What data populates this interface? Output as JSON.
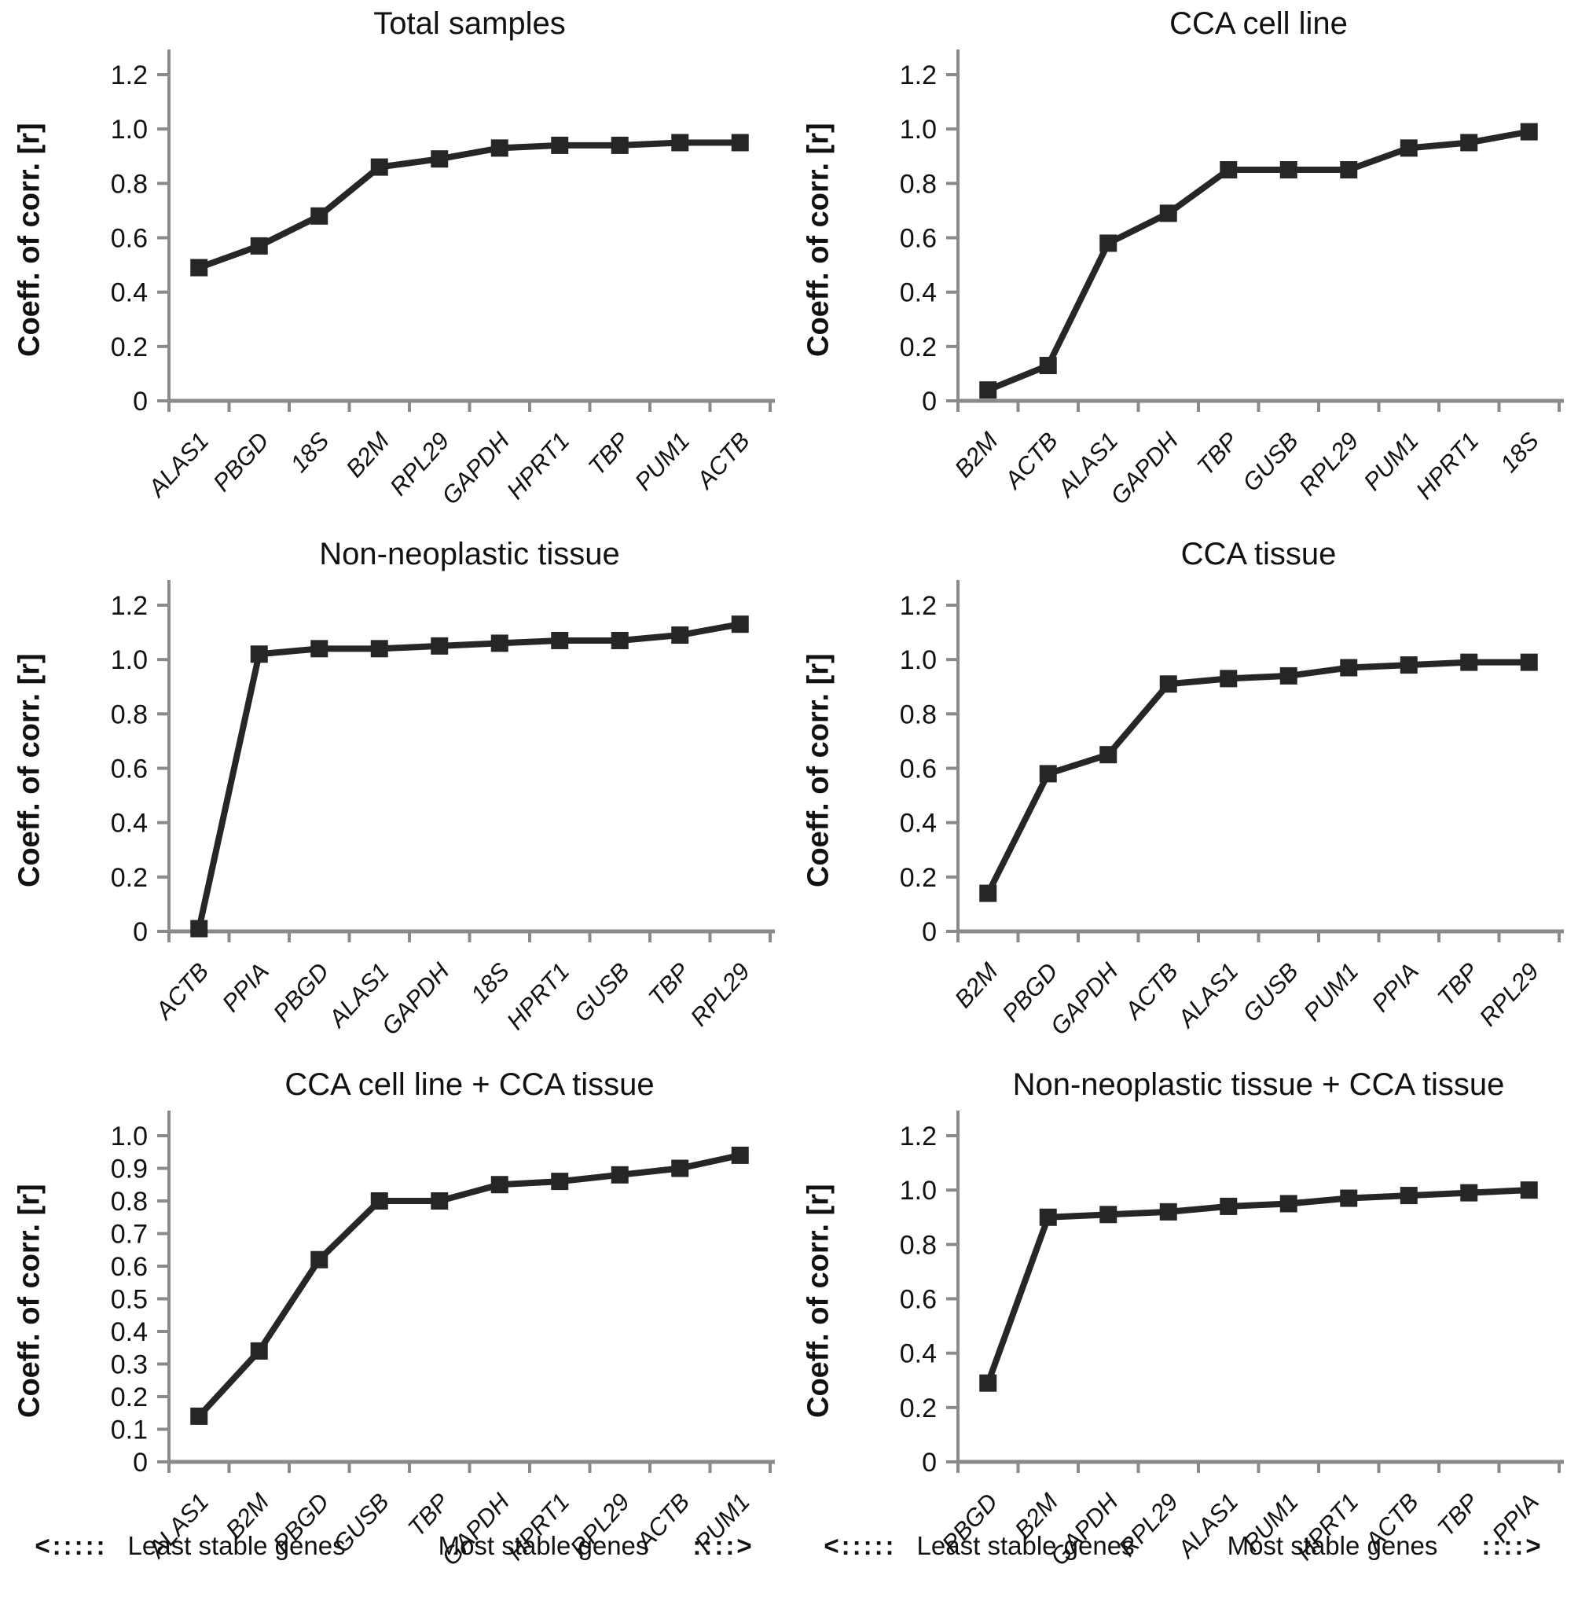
{
  "figure": {
    "background": "#ffffff",
    "line_color": "#262626",
    "axis_color": "#8a8a8a",
    "text_color": "#111111",
    "caption": {
      "left_arrow": "<:::::",
      "least_label": "Least stable genes",
      "most_label": "Most stable genes",
      "right_arrow": "::::>"
    }
  },
  "chart_data": [
    {
      "type": "line",
      "title": "Total samples",
      "ylabel": "Coeff. of corr. [r]",
      "xlabel": "",
      "ylim": [
        0,
        1.2
      ],
      "ytick_step": 0.2,
      "grid": false,
      "marker": "square",
      "categories": [
        "ALAS1",
        "PBGD",
        "18S",
        "B2M",
        "RPL29",
        "GAPDH",
        "HPRT1",
        "TBP",
        "PUM1",
        "ACTB"
      ],
      "values": [
        0.49,
        0.57,
        0.68,
        0.86,
        0.89,
        0.93,
        0.94,
        0.94,
        0.95,
        0.95
      ]
    },
    {
      "type": "line",
      "title": "CCA cell line",
      "ylabel": "Coeff. of corr. [r]",
      "xlabel": "",
      "ylim": [
        0,
        1.2
      ],
      "ytick_step": 0.2,
      "grid": false,
      "marker": "square",
      "categories": [
        "B2M",
        "ACTB",
        "ALAS1",
        "GAPDH",
        "TBP",
        "GUSB",
        "RPL29",
        "PUM1",
        "HPRT1",
        "18S"
      ],
      "values": [
        0.04,
        0.13,
        0.58,
        0.69,
        0.85,
        0.85,
        0.85,
        0.93,
        0.95,
        0.99
      ]
    },
    {
      "type": "line",
      "title": "Non-neoplastic tissue",
      "ylabel": "Coeff. of corr. [r]",
      "xlabel": "",
      "ylim": [
        0,
        1.2
      ],
      "ytick_step": 0.2,
      "grid": false,
      "marker": "square",
      "categories": [
        "ACTB",
        "PPIA",
        "PBGD",
        "ALAS1",
        "GAPDH",
        "18S",
        "HPRT1",
        "GUSB",
        "TBP",
        "RPL29"
      ],
      "values": [
        0.01,
        1.02,
        1.04,
        1.04,
        1.05,
        1.06,
        1.07,
        1.07,
        1.09,
        1.13
      ]
    },
    {
      "type": "line",
      "title": "CCA tissue",
      "ylabel": "Coeff. of corr. [r]",
      "xlabel": "",
      "ylim": [
        0,
        1.2
      ],
      "ytick_step": 0.2,
      "grid": false,
      "marker": "square",
      "categories": [
        "B2M",
        "PBGD",
        "GAPDH",
        "ACTB",
        "ALAS1",
        "GUSB",
        "PUM1",
        "PPIA",
        "TBP",
        "RPL29"
      ],
      "values": [
        0.14,
        0.58,
        0.65,
        0.91,
        0.93,
        0.94,
        0.97,
        0.98,
        0.99,
        0.99
      ]
    },
    {
      "type": "line",
      "title": "CCA cell line + CCA tissue",
      "ylabel": "Coeff. of corr. [r]",
      "xlabel": "",
      "ylim": [
        0,
        1.0
      ],
      "ytick_step": 0.1,
      "grid": false,
      "marker": "square",
      "categories": [
        "ALAS1",
        "B2M",
        "PBGD",
        "GUSB",
        "TBP",
        "GAPDH",
        "HPRT1",
        "RPL29",
        "ACTB",
        "PUM1"
      ],
      "values": [
        0.14,
        0.34,
        0.62,
        0.8,
        0.8,
        0.85,
        0.86,
        0.88,
        0.9,
        0.94
      ]
    },
    {
      "type": "line",
      "title": "Non-neoplastic tissue + CCA tissue",
      "ylabel": "Coeff. of corr. [r]",
      "xlabel": "",
      "ylim": [
        0,
        1.2
      ],
      "ytick_step": 0.2,
      "grid": false,
      "marker": "square",
      "categories": [
        "PBGD",
        "B2M",
        "GAPDH",
        "RPL29",
        "ALAS1",
        "PUM1",
        "HPRT1",
        "ACTB",
        "TBP",
        "PPIA"
      ],
      "values": [
        0.29,
        0.9,
        0.91,
        0.92,
        0.94,
        0.95,
        0.97,
        0.98,
        0.99,
        1.0
      ]
    }
  ]
}
